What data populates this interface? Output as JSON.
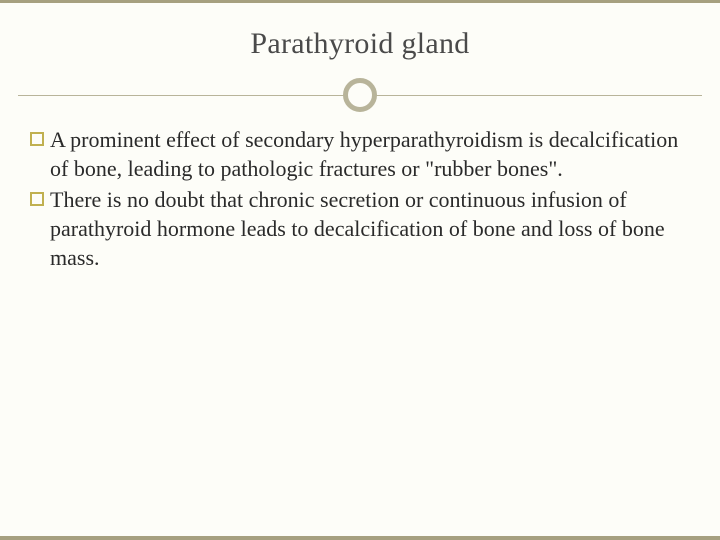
{
  "slide": {
    "title": "Parathyroid gland",
    "bullets": [
      "A prominent effect of secondary hyperparathyroidism is decalcification of bone, leading to pathologic fractures or \"rubber bones\".",
      "There is no doubt that chronic secretion or continuous infusion of parathyroid hormone leads to decalcification of bone and loss of bone mass."
    ],
    "style": {
      "background_color": "#fdfdf8",
      "accent_border_color": "#a6a080",
      "divider_color": "#b8b49a",
      "bullet_marker_color": "#c0b050",
      "title_color": "#4a4a4a",
      "text_color": "#2a2a2a",
      "title_fontsize": 30,
      "body_fontsize": 22,
      "font_family": "Georgia, serif"
    }
  }
}
